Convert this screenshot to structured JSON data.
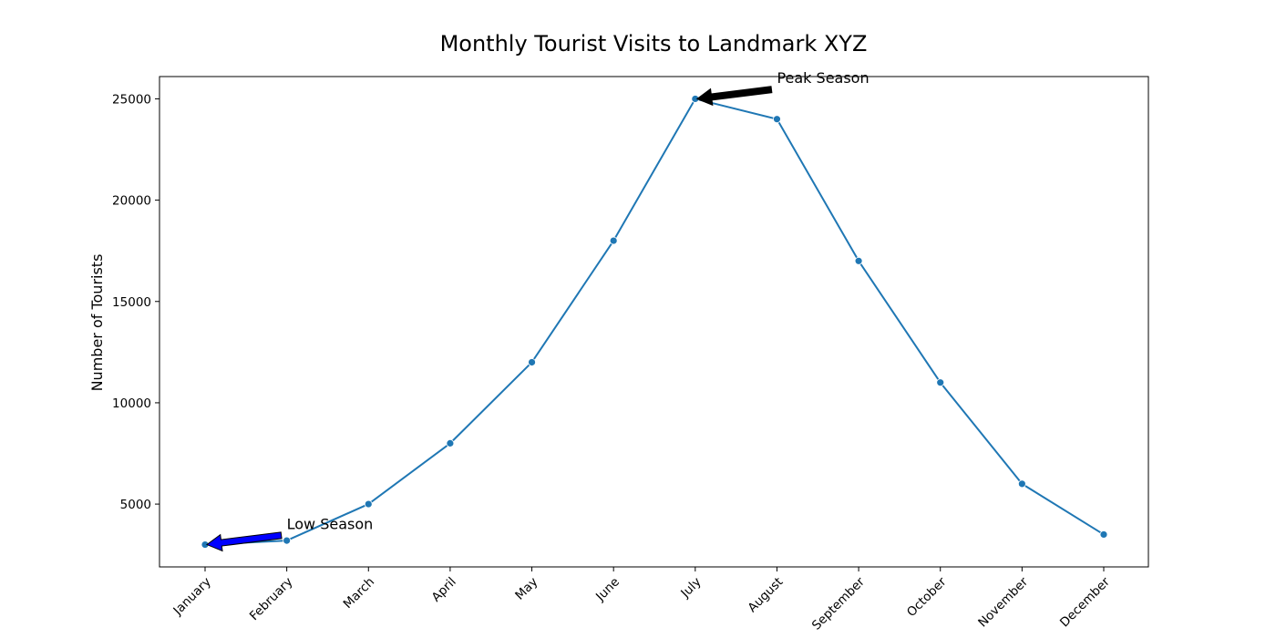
{
  "chart_data": {
    "type": "line",
    "title": "Monthly Tourist Visits to Landmark XYZ",
    "xlabel": "",
    "ylabel": "Number of Tourists",
    "categories": [
      "January",
      "February",
      "March",
      "April",
      "May",
      "June",
      "July",
      "August",
      "September",
      "October",
      "November",
      "December"
    ],
    "series": [
      {
        "values": [
          3000,
          3200,
          5000,
          8000,
          12000,
          18000,
          25000,
          24000,
          17000,
          11000,
          6000,
          3500
        ],
        "color": "#1f77b4"
      }
    ],
    "yticks": [
      5000,
      10000,
      15000,
      20000,
      25000
    ],
    "ylim": [
      1900,
      26100
    ],
    "grid": false,
    "legend": false,
    "annotations": [
      {
        "text": "Peak Season",
        "target_category": "July",
        "target_value": 25000,
        "text_position": [
          "August",
          26000
        ],
        "arrow_color": "#000000"
      },
      {
        "text": "Low Season",
        "target_category": "January",
        "target_value": 3000,
        "text_position": [
          "February",
          4000
        ],
        "arrow_color": "#0000ff"
      }
    ]
  }
}
